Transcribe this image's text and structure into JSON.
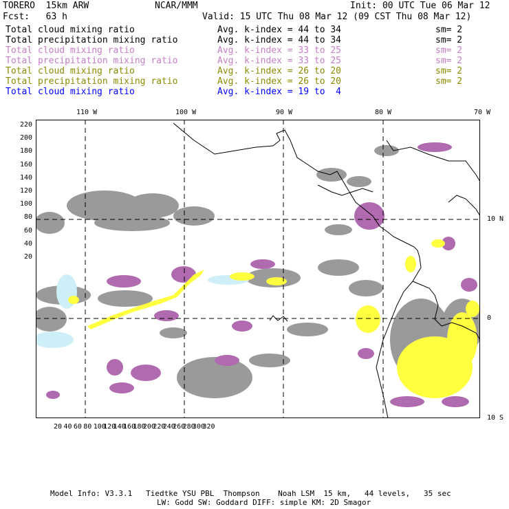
{
  "header": {
    "model": "TORERO  15km ARW",
    "org": "NCAR/MMM",
    "init": "Init: 00 UTC Tue 06 Mar 12",
    "fcst": "Fcst:   63 h",
    "valid": "Valid: 15 UTC Thu 08 Mar 12 (09 CST Thu 08 Mar 12)"
  },
  "legend": [
    {
      "field": "Total cloud mixing ratio",
      "stat": "Avg. k-index = 44 to 34",
      "sm": "sm= 2",
      "color": "#000000"
    },
    {
      "field": "Total precipitation mixing ratio",
      "stat": "Avg. k-index = 44 to 34",
      "sm": "sm= 2",
      "color": "#000000"
    },
    {
      "field": "Total cloud mixing ratio",
      "stat": "Avg. k-index = 33 to 25",
      "sm": "sm= 2",
      "color": "#c77dc7"
    },
    {
      "field": "Total precipitation mixing ratio",
      "stat": "Avg. k-index = 33 to 25",
      "sm": "sm= 2",
      "color": "#c77dc7"
    },
    {
      "field": "Total cloud mixing ratio",
      "stat": "Avg. k-index = 26 to 20",
      "sm": "sm= 2",
      "color": "#8b8b00"
    },
    {
      "field": "Total precipitation mixing ratio",
      "stat": "Avg. k-index = 26 to 20",
      "sm": "sm= 2",
      "color": "#8b8b00"
    },
    {
      "field": "Total cloud mixing ratio",
      "stat": "Avg. k-index = 19 to  4",
      "sm": "",
      "color": "#0000ff"
    }
  ],
  "axes": {
    "lon_labels": [
      "110 W",
      "100 W",
      "90 W",
      "80 W",
      "70 W"
    ],
    "lat_labels": [
      "10 N",
      "0",
      "10 S"
    ],
    "y_ticks": [
      "220",
      "200",
      "180",
      "160",
      "140",
      "120",
      "100",
      "80",
      "60",
      "40",
      "20"
    ],
    "x_ticks": [
      "20",
      "40",
      "60",
      "80",
      "100",
      "120",
      "140",
      "160",
      "180",
      "200",
      "220",
      "240",
      "260",
      "280",
      "300",
      "320"
    ]
  },
  "colors": {
    "gray": "#9a9a9a",
    "magenta": "#b06ab0",
    "yellow": "#ffff40",
    "cyan": "#d0f0f8",
    "grid": "#000000"
  },
  "footer": {
    "line1": "Model Info: V3.3.1   Tiedtke YSU PBL  Thompson    Noah LSM  15 km,   44 levels,   35 sec",
    "line2": "LW: Godd SW: Goddard DIFF: simple KM: 2D Smagor"
  }
}
